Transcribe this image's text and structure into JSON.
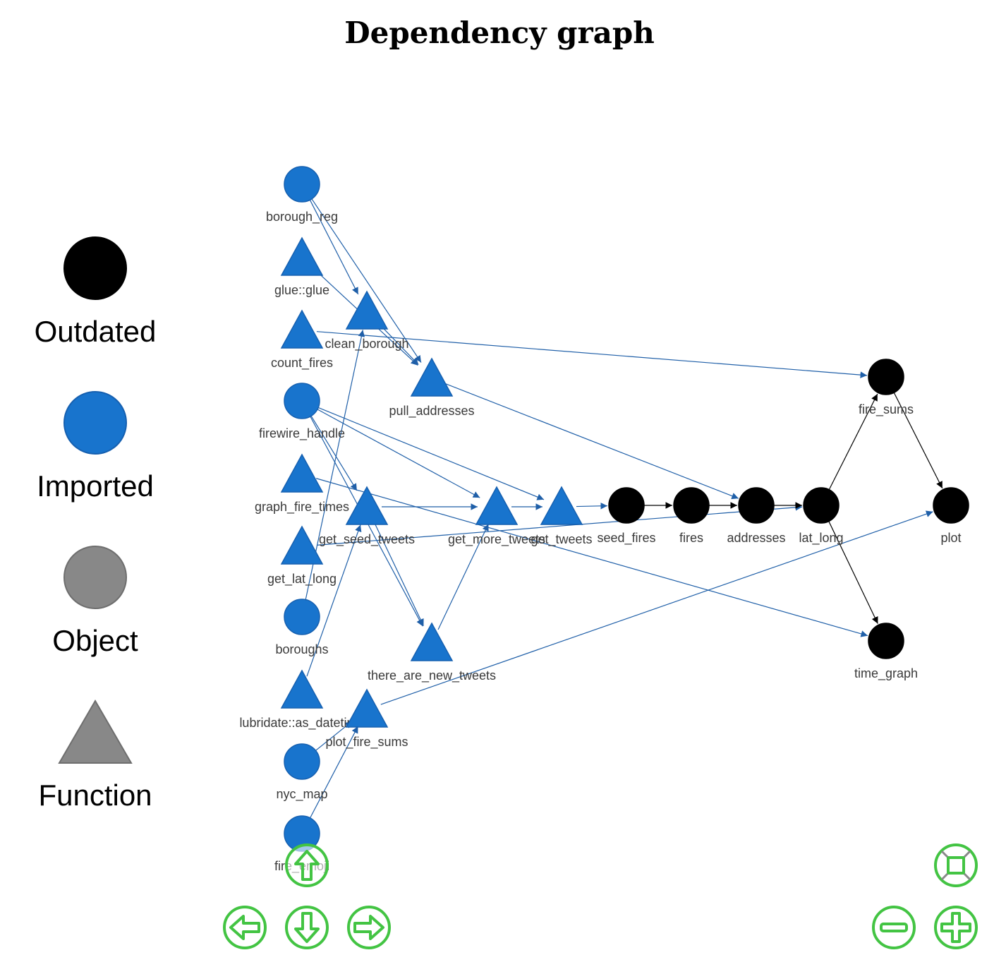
{
  "title": "Dependency graph",
  "colors": {
    "outdated": "#000000",
    "imported": "#1874CD",
    "object": "#888888",
    "function": "#888888",
    "edge_imported": "#1F5FA8",
    "edge_outdated": "#000000",
    "nav_button": "#43C443"
  },
  "legend": [
    {
      "label": "Outdated",
      "shape": "circle",
      "color_key": "outdated"
    },
    {
      "label": "Imported",
      "shape": "circle",
      "color_key": "imported"
    },
    {
      "label": "Object",
      "shape": "circle",
      "color_key": "object"
    },
    {
      "label": "Function",
      "shape": "triangle",
      "color_key": "function"
    }
  ],
  "nodes": [
    {
      "id": "borough_reg",
      "label": "borough_reg",
      "shape": "circle",
      "status": "imported"
    },
    {
      "id": "glue",
      "label": "glue::glue",
      "shape": "triangle",
      "status": "imported"
    },
    {
      "id": "count_fires",
      "label": "count_fires",
      "shape": "triangle",
      "status": "imported"
    },
    {
      "id": "firewire_handle",
      "label": "firewire_handle",
      "shape": "circle",
      "status": "imported"
    },
    {
      "id": "graph_fire_times",
      "label": "graph_fire_times",
      "shape": "triangle",
      "status": "imported"
    },
    {
      "id": "get_lat_long",
      "label": "get_lat_long",
      "shape": "triangle",
      "status": "imported"
    },
    {
      "id": "boroughs",
      "label": "boroughs",
      "shape": "circle",
      "status": "imported"
    },
    {
      "id": "as_datetime",
      "label": "lubridate::as_datetime",
      "shape": "triangle",
      "status": "imported"
    },
    {
      "id": "nyc_map",
      "label": "nyc_map",
      "shape": "circle",
      "status": "imported"
    },
    {
      "id": "fire_emoji",
      "label": "fire_emoji",
      "shape": "circle",
      "status": "imported"
    },
    {
      "id": "clean_borough",
      "label": "clean_borough",
      "shape": "triangle",
      "status": "imported"
    },
    {
      "id": "pull_addresses",
      "label": "pull_addresses",
      "shape": "triangle",
      "status": "imported"
    },
    {
      "id": "get_seed_tweets",
      "label": "get_seed_tweets",
      "shape": "triangle",
      "status": "imported"
    },
    {
      "id": "there_are_new_tweets",
      "label": "there_are_new_tweets",
      "shape": "triangle",
      "status": "imported"
    },
    {
      "id": "plot_fire_sums",
      "label": "plot_fire_sums",
      "shape": "triangle",
      "status": "imported"
    },
    {
      "id": "get_more_tweets",
      "label": "get_more_tweets",
      "shape": "triangle",
      "status": "imported"
    },
    {
      "id": "get_tweets",
      "label": "get_tweets",
      "shape": "triangle",
      "status": "imported"
    },
    {
      "id": "seed_fires",
      "label": "seed_fires",
      "shape": "circle",
      "status": "outdated"
    },
    {
      "id": "fires",
      "label": "fires",
      "shape": "circle",
      "status": "outdated"
    },
    {
      "id": "addresses",
      "label": "addresses",
      "shape": "circle",
      "status": "outdated"
    },
    {
      "id": "lat_long",
      "label": "lat_long",
      "shape": "circle",
      "status": "outdated"
    },
    {
      "id": "fire_sums",
      "label": "fire_sums",
      "shape": "circle",
      "status": "outdated"
    },
    {
      "id": "time_graph",
      "label": "time_graph",
      "shape": "circle",
      "status": "outdated"
    },
    {
      "id": "plot",
      "label": "plot",
      "shape": "circle",
      "status": "outdated"
    }
  ],
  "edges": [
    [
      "borough_reg",
      "clean_borough"
    ],
    [
      "borough_reg",
      "pull_addresses"
    ],
    [
      "glue",
      "pull_addresses"
    ],
    [
      "clean_borough",
      "pull_addresses"
    ],
    [
      "count_fires",
      "fire_sums"
    ],
    [
      "pull_addresses",
      "addresses"
    ],
    [
      "firewire_handle",
      "get_seed_tweets"
    ],
    [
      "firewire_handle",
      "get_more_tweets"
    ],
    [
      "firewire_handle",
      "get_tweets"
    ],
    [
      "firewire_handle",
      "there_are_new_tweets"
    ],
    [
      "graph_fire_times",
      "time_graph"
    ],
    [
      "get_lat_long",
      "lat_long"
    ],
    [
      "boroughs",
      "clean_borough"
    ],
    [
      "as_datetime",
      "get_seed_tweets"
    ],
    [
      "nyc_map",
      "plot_fire_sums"
    ],
    [
      "fire_emoji",
      "plot_fire_sums"
    ],
    [
      "get_seed_tweets",
      "get_more_tweets"
    ],
    [
      "get_seed_tweets",
      "there_are_new_tweets"
    ],
    [
      "there_are_new_tweets",
      "get_more_tweets"
    ],
    [
      "get_more_tweets",
      "get_tweets"
    ],
    [
      "get_tweets",
      "seed_fires"
    ],
    [
      "seed_fires",
      "fires"
    ],
    [
      "fires",
      "addresses"
    ],
    [
      "addresses",
      "lat_long"
    ],
    [
      "lat_long",
      "fire_sums"
    ],
    [
      "lat_long",
      "time_graph"
    ],
    [
      "fire_sums",
      "plot"
    ],
    [
      "plot_fire_sums",
      "plot"
    ]
  ],
  "nav": {
    "up": "up-arrow-icon",
    "down": "down-arrow-icon",
    "left": "left-arrow-icon",
    "right": "right-arrow-icon",
    "fit": "fit-screen-icon",
    "zoom_out": "zoom-out-icon",
    "zoom_in": "zoom-in-icon"
  }
}
